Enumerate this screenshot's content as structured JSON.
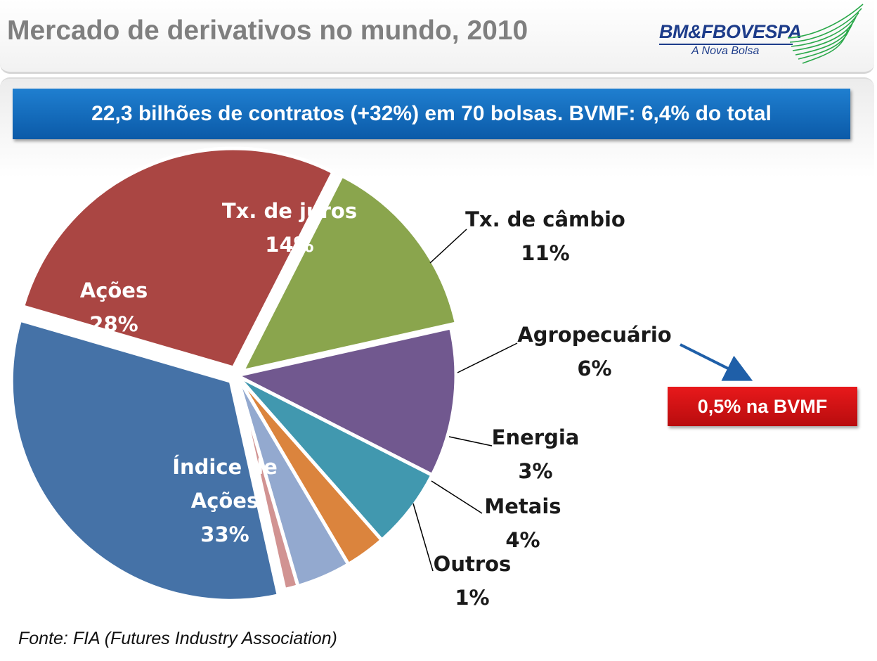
{
  "header": {
    "title": "Mercado de derivativos no mundo, 2010"
  },
  "logo": {
    "name": "BM&FBOVESPA",
    "tagline": "A Nova Bolsa"
  },
  "banner": {
    "text": "22,3 bilhões de contratos (+32%) em 70 bolsas.  BVMF: 6,4% do total"
  },
  "callout": {
    "text": "0,5% na BVMF"
  },
  "source": {
    "text": "Fonte: FIA (Futures Industry Association)"
  },
  "colors": {
    "banner": "#1570c0",
    "callout": "#d41416",
    "title": "#7f7f7f",
    "logo": "#1d3c8a"
  },
  "chart_data": {
    "type": "pie",
    "slices": [
      {
        "label": "Tx. de juros",
        "pct_label": "14%",
        "value": 14,
        "color": "#8aa54d"
      },
      {
        "label": "Tx. de câmbio",
        "pct_label": "11%",
        "value": 11,
        "color": "#71588f"
      },
      {
        "label": "Agropecuário",
        "pct_label": "6%",
        "value": 6,
        "color": "#4198af"
      },
      {
        "label": "Energia",
        "pct_label": "3%",
        "value": 3,
        "color": "#db843d"
      },
      {
        "label": "Metais",
        "pct_label": "4%",
        "value": 4,
        "color": "#93a9cf"
      },
      {
        "label": "Outros",
        "pct_label": "1%",
        "value": 1,
        "color": "#d19392"
      },
      {
        "label": "Índice de Ações",
        "pct_label": "33%",
        "value": 33,
        "color": "#4572a7"
      },
      {
        "label": "Ações",
        "pct_label": "28%",
        "value": 28,
        "color": "#aa4643"
      }
    ]
  }
}
